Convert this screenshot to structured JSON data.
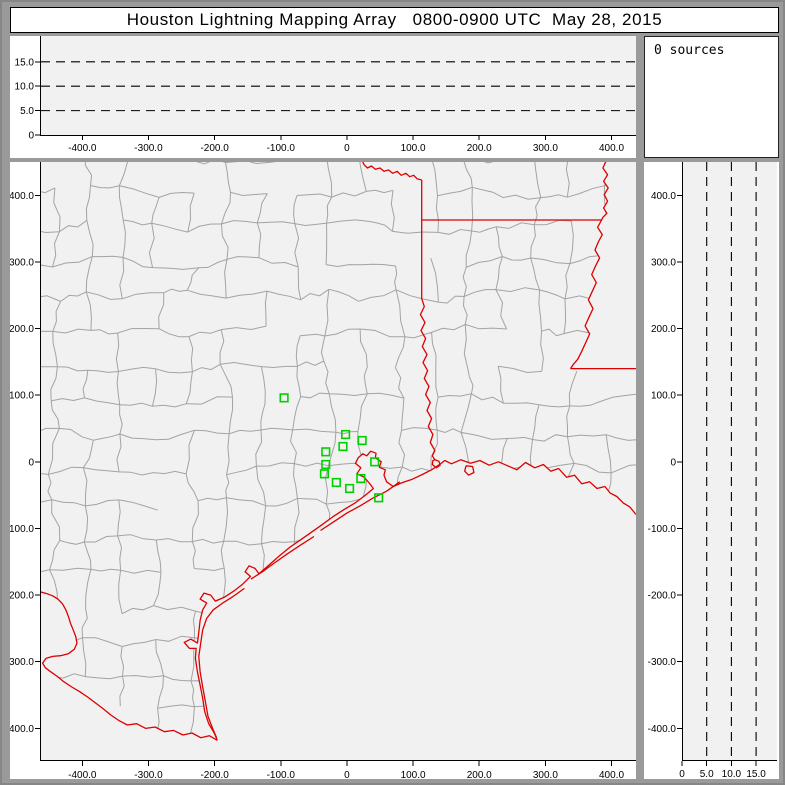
{
  "title": "Houston Lightning Mapping Array   0800-0900 UTC  May 28, 2015",
  "sources_panel": {
    "text": "0 sources"
  },
  "colors": {
    "frame": "#9a9a9a",
    "panel_bg": "#ffffff",
    "plot_bg": "#f1f1f1",
    "axis": "#000000",
    "county_line": "#a3a3a3",
    "state_border": "#dd0000",
    "station_marker": "#00d000",
    "dashed_guide": "#000000"
  },
  "axes": {
    "x_km": {
      "min": -464,
      "max": 437,
      "ticks": [
        {
          "v": -400,
          "label": "-400.0"
        },
        {
          "v": -300,
          "label": "-300.0"
        },
        {
          "v": -200,
          "label": "-200.0"
        },
        {
          "v": -100,
          "label": "-100.0"
        },
        {
          "v": 0,
          "label": "0"
        },
        {
          "v": 100,
          "label": "100.0"
        },
        {
          "v": 200,
          "label": "200.0"
        },
        {
          "v": 300,
          "label": "300.0"
        },
        {
          "v": 400,
          "label": "400.0"
        }
      ]
    },
    "y_km": {
      "min": -449,
      "max": 450,
      "ticks": [
        {
          "v": 400,
          "label": "400.0"
        },
        {
          "v": 300,
          "label": "300.0"
        },
        {
          "v": 200,
          "label": "200.0"
        },
        {
          "v": 100,
          "label": "100.0"
        },
        {
          "v": 0,
          "label": "0"
        },
        {
          "v": -100,
          "label": "-100.0"
        },
        {
          "v": -200,
          "label": "-200.0"
        },
        {
          "v": -300,
          "label": "-300.0"
        },
        {
          "v": -400,
          "label": "-400.0"
        }
      ]
    },
    "alt_km": {
      "min": 0,
      "max": 20.3,
      "ticks": [
        {
          "v": 0,
          "label": "0"
        },
        {
          "v": 5,
          "label": "5.0"
        },
        {
          "v": 10,
          "label": "10.0"
        },
        {
          "v": 15,
          "label": "15.0"
        }
      ],
      "dashed_guides": [
        5,
        10,
        15
      ]
    }
  },
  "map_data": {
    "stations_km": [
      [
        -95,
        96
      ],
      [
        -2,
        41
      ],
      [
        23,
        32
      ],
      [
        -6,
        23
      ],
      [
        -32,
        15
      ],
      [
        -32,
        -4
      ],
      [
        42,
        0
      ],
      [
        -34,
        -18
      ],
      [
        -16,
        -31
      ],
      [
        21,
        -25
      ],
      [
        4,
        -40
      ],
      [
        48,
        -54
      ]
    ],
    "boundaries_km": {
      "red_river": [
        [
          23,
          452
        ],
        [
          26,
          446
        ],
        [
          31,
          441
        ],
        [
          37,
          444
        ],
        [
          43,
          439
        ],
        [
          50,
          441
        ],
        [
          56,
          436
        ],
        [
          63,
          438
        ],
        [
          69,
          433
        ],
        [
          76,
          436
        ],
        [
          82,
          430
        ],
        [
          89,
          433
        ],
        [
          95,
          428
        ],
        [
          101,
          430
        ],
        [
          106,
          425
        ],
        [
          113,
          423
        ]
      ],
      "tx_ar_line": [
        [
          113,
          423
        ],
        [
          113,
          363
        ]
      ],
      "ar_la_line": [
        [
          113,
          363
        ],
        [
          385,
          363
        ]
      ],
      "tx_la_line": [
        [
          113,
          363
        ],
        [
          113,
          245
        ]
      ],
      "sabine_river": [
        [
          113,
          245
        ],
        [
          117,
          233
        ],
        [
          111,
          221
        ],
        [
          118,
          209
        ],
        [
          112,
          197
        ],
        [
          119,
          185
        ],
        [
          114,
          173
        ],
        [
          121,
          161
        ],
        [
          115,
          149
        ],
        [
          122,
          137
        ],
        [
          117,
          125
        ],
        [
          124,
          113
        ],
        [
          119,
          101
        ],
        [
          126,
          89
        ],
        [
          121,
          77
        ],
        [
          128,
          65
        ],
        [
          123,
          53
        ],
        [
          130,
          41
        ],
        [
          126,
          29
        ],
        [
          133,
          17
        ],
        [
          129,
          9
        ],
        [
          133,
          3
        ]
      ],
      "mississippi_river": [
        [
          392,
          452
        ],
        [
          387,
          441
        ],
        [
          394,
          431
        ],
        [
          388,
          421
        ],
        [
          395,
          411
        ],
        [
          389,
          401
        ],
        [
          394,
          391
        ],
        [
          388,
          381
        ],
        [
          393,
          373
        ],
        [
          387,
          367
        ],
        [
          385,
          363
        ],
        [
          379,
          352
        ],
        [
          386,
          341
        ],
        [
          380,
          330
        ],
        [
          375,
          318
        ],
        [
          382,
          306
        ],
        [
          376,
          294
        ],
        [
          370,
          281
        ],
        [
          377,
          269
        ],
        [
          371,
          256
        ],
        [
          365,
          243
        ],
        [
          372,
          230
        ],
        [
          366,
          217
        ],
        [
          360,
          204
        ],
        [
          367,
          192
        ],
        [
          361,
          179
        ],
        [
          355,
          166
        ],
        [
          349,
          154
        ],
        [
          342,
          146
        ],
        [
          338,
          140
        ]
      ],
      "la_ms_line": [
        [
          338,
          140
        ],
        [
          445,
          140
        ]
      ],
      "coastline": [
        [
          437,
          -79
        ],
        [
          428,
          -68
        ],
        [
          418,
          -62
        ],
        [
          408,
          -52
        ],
        [
          398,
          -47
        ],
        [
          390,
          -37
        ],
        [
          378,
          -40
        ],
        [
          367,
          -30
        ],
        [
          355,
          -33
        ],
        [
          344,
          -20
        ],
        [
          332,
          -23
        ],
        [
          320,
          -10
        ],
        [
          308,
          -14
        ],
        [
          297,
          -4
        ],
        [
          284,
          -9
        ],
        [
          270,
          -1
        ],
        [
          257,
          -12
        ],
        [
          243,
          -6
        ],
        [
          229,
          0
        ],
        [
          215,
          -5
        ],
        [
          201,
          2
        ],
        [
          187,
          -2
        ],
        [
          172,
          3
        ],
        [
          158,
          -3
        ],
        [
          148,
          2
        ],
        [
          140,
          -4
        ],
        [
          128,
          -12
        ],
        [
          114,
          -19
        ],
        [
          99,
          -26
        ],
        [
          84,
          -31
        ],
        [
          70,
          -37
        ],
        [
          60,
          -30
        ],
        [
          56,
          -20
        ],
        [
          58,
          -12
        ],
        [
          49,
          -8
        ],
        [
          52,
          0
        ],
        [
          43,
          6
        ],
        [
          44,
          13
        ],
        [
          36,
          16
        ],
        [
          30,
          9
        ],
        [
          24,
          12
        ],
        [
          17,
          6
        ],
        [
          13,
          -2
        ],
        [
          21,
          -9
        ],
        [
          15,
          -18
        ],
        [
          26,
          -23
        ],
        [
          33,
          -31
        ],
        [
          40,
          -40
        ],
        [
          28,
          -50
        ],
        [
          12,
          -62
        ],
        [
          -5,
          -72
        ],
        [
          -22,
          -83
        ],
        [
          -40,
          -96
        ],
        [
          -57,
          -108
        ],
        [
          -70,
          -117
        ],
        [
          -86,
          -128
        ],
        [
          -102,
          -141
        ],
        [
          -118,
          -155
        ],
        [
          -133,
          -168
        ],
        [
          -139,
          -160
        ],
        [
          -148,
          -156
        ],
        [
          -154,
          -165
        ],
        [
          -146,
          -172
        ],
        [
          -158,
          -184
        ],
        [
          -171,
          -194
        ],
        [
          -185,
          -203
        ],
        [
          -199,
          -209
        ],
        [
          -206,
          -200
        ],
        [
          -216,
          -197
        ],
        [
          -222,
          -206
        ],
        [
          -212,
          -212
        ],
        [
          -218,
          -222
        ],
        [
          -222,
          -238
        ],
        [
          -224,
          -256
        ],
        [
          -226,
          -272
        ],
        [
          -236,
          -266
        ],
        [
          -246,
          -271
        ],
        [
          -238,
          -280
        ],
        [
          -228,
          -280
        ],
        [
          -229,
          -295
        ],
        [
          -226,
          -315
        ],
        [
          -222,
          -335
        ],
        [
          -218,
          -355
        ],
        [
          -215,
          -375
        ],
        [
          -209,
          -393
        ],
        [
          -200,
          -408
        ],
        [
          -196,
          -418
        ]
      ],
      "rio_grande": [
        [
          -196,
          -418
        ],
        [
          -208,
          -411
        ],
        [
          -221,
          -414
        ],
        [
          -234,
          -407
        ],
        [
          -248,
          -410
        ],
        [
          -262,
          -403
        ],
        [
          -276,
          -405
        ],
        [
          -290,
          -398
        ],
        [
          -304,
          -400
        ],
        [
          -318,
          -393
        ],
        [
          -332,
          -395
        ],
        [
          -345,
          -388
        ],
        [
          -357,
          -380
        ],
        [
          -368,
          -371
        ],
        [
          -380,
          -362
        ],
        [
          -392,
          -353
        ],
        [
          -404,
          -345
        ],
        [
          -416,
          -338
        ],
        [
          -428,
          -330
        ],
        [
          -438,
          -322
        ],
        [
          -448,
          -315
        ],
        [
          -456,
          -309
        ],
        [
          -460,
          -302
        ],
        [
          -455,
          -295
        ],
        [
          -445,
          -292
        ],
        [
          -433,
          -291
        ],
        [
          -421,
          -288
        ],
        [
          -412,
          -281
        ],
        [
          -408,
          -272
        ],
        [
          -410,
          -262
        ],
        [
          -414,
          -252
        ],
        [
          -418,
          -242
        ],
        [
          -421,
          -232
        ],
        [
          -425,
          -222
        ],
        [
          -430,
          -213
        ],
        [
          -437,
          -206
        ],
        [
          -445,
          -201
        ],
        [
          -453,
          -198
        ],
        [
          -464,
          -195
        ]
      ]
    },
    "barrier_islands_km": [
      [
        [
          80,
          -30
        ],
        [
          60,
          -44
        ],
        [
          40,
          -54
        ],
        [
          20,
          -66
        ],
        [
          0,
          -77
        ],
        [
          -20,
          -90
        ],
        [
          -40,
          -103
        ]
      ],
      [
        [
          -50,
          -112
        ],
        [
          -70,
          -125
        ],
        [
          -90,
          -138
        ],
        [
          -110,
          -152
        ],
        [
          -128,
          -165
        ],
        [
          -145,
          -176
        ]
      ],
      [
        [
          -155,
          -190
        ],
        [
          -172,
          -202
        ],
        [
          -188,
          -212
        ],
        [
          -202,
          -222
        ],
        [
          -212,
          -235
        ],
        [
          -218,
          -252
        ],
        [
          -221,
          -272
        ],
        [
          -224,
          -292
        ],
        [
          -222,
          -315
        ],
        [
          -218,
          -338
        ],
        [
          -214,
          -360
        ],
        [
          -210,
          -382
        ],
        [
          -203,
          -400
        ],
        [
          -197,
          -414
        ]
      ]
    ],
    "lakes_km": [
      [
        [
          133,
          3
        ],
        [
          139,
          1
        ],
        [
          141,
          -5
        ],
        [
          135,
          -9
        ],
        [
          129,
          -4
        ],
        [
          130,
          2
        ],
        [
          133,
          3
        ]
      ],
      [
        [
          180,
          -6
        ],
        [
          190,
          -7
        ],
        [
          192,
          -16
        ],
        [
          184,
          -20
        ],
        [
          178,
          -14
        ],
        [
          180,
          -6
        ]
      ]
    ],
    "county_grid": {
      "seed": 20150528,
      "spacing_km": 52,
      "node_jitter_km": 20,
      "segment_jitter_km": 9,
      "skip_prob": 0.22
    }
  }
}
